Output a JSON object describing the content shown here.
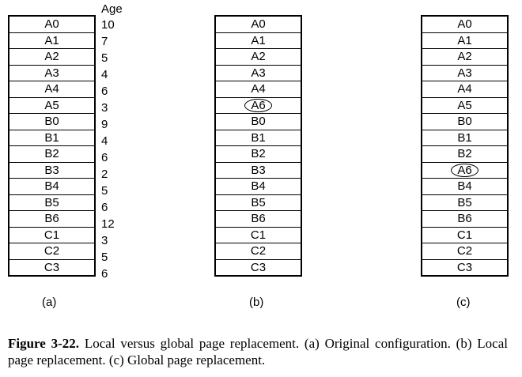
{
  "age_header": "Age",
  "tables": [
    {
      "label": "(a)",
      "pages": [
        "A0",
        "A1",
        "A2",
        "A3",
        "A4",
        "A5",
        "B0",
        "B1",
        "B2",
        "B3",
        "B4",
        "B5",
        "B6",
        "C1",
        "C2",
        "C3"
      ],
      "ages": [
        "10",
        "7",
        "5",
        "4",
        "6",
        "3",
        "9",
        "4",
        "6",
        "2",
        "5",
        "6",
        "12",
        "3",
        "5",
        "6"
      ],
      "highlighted_index": null
    },
    {
      "label": "(b)",
      "pages": [
        "A0",
        "A1",
        "A2",
        "A3",
        "A4",
        "A6",
        "B0",
        "B1",
        "B2",
        "B3",
        "B4",
        "B5",
        "B6",
        "C1",
        "C2",
        "C3"
      ],
      "highlighted_index": 5
    },
    {
      "label": "(c)",
      "pages": [
        "A0",
        "A1",
        "A2",
        "A3",
        "A4",
        "A5",
        "B0",
        "B1",
        "B2",
        "A6",
        "B4",
        "B5",
        "B6",
        "C1",
        "C2",
        "C3"
      ],
      "highlighted_index": 9
    }
  ],
  "caption": {
    "bold": "Figure 3-22.",
    "text": " Local versus global page replacement. (a) Original configuration. (b) Local page replacement. (c) Global page replacement."
  }
}
